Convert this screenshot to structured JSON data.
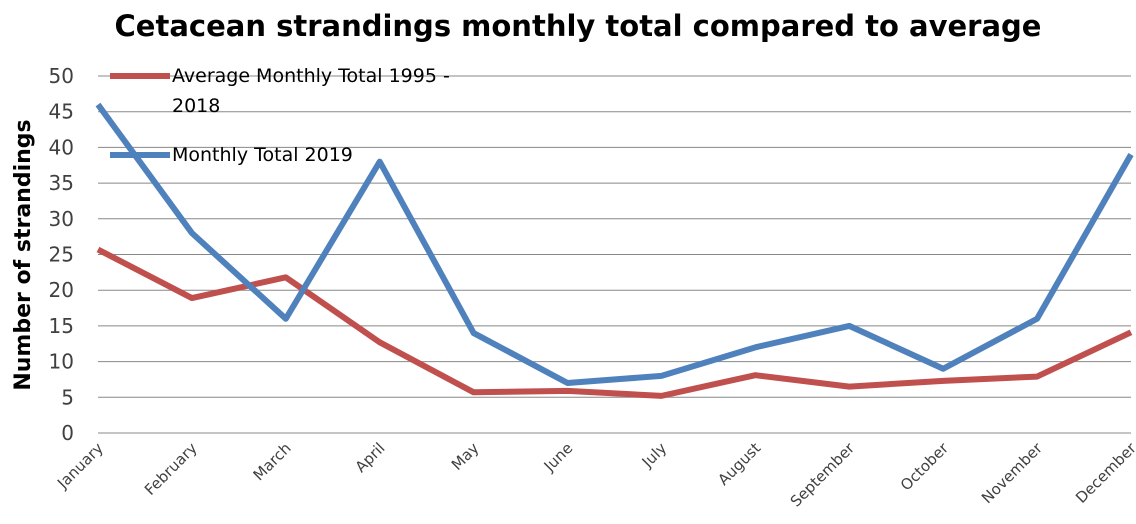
{
  "chart_data": {
    "type": "line",
    "title": "Cetacean strandings monthly total compared to average",
    "y_label": "Number of strandings",
    "categories": [
      "January",
      "February",
      "March",
      "April",
      "May",
      "June",
      "July",
      "August",
      "September",
      "October",
      "November",
      "December"
    ],
    "series": [
      {
        "name": "Average Monthly Total 1995 - 2018",
        "color": "#c0504d",
        "values": [
          25.7,
          18.9,
          21.8,
          12.7,
          5.7,
          5.9,
          5.2,
          8.1,
          6.5,
          7.3,
          7.9,
          14.1
        ]
      },
      {
        "name": "Monthly Total 2019",
        "color": "#4f81bd",
        "values": [
          46,
          28,
          16,
          38,
          14,
          7,
          8,
          12,
          15,
          9,
          16,
          39
        ]
      }
    ],
    "ylim": [
      0,
      50
    ],
    "yticks": [
      0,
      5,
      10,
      15,
      20,
      25,
      30,
      35,
      40,
      45,
      50
    ],
    "grid": true
  }
}
